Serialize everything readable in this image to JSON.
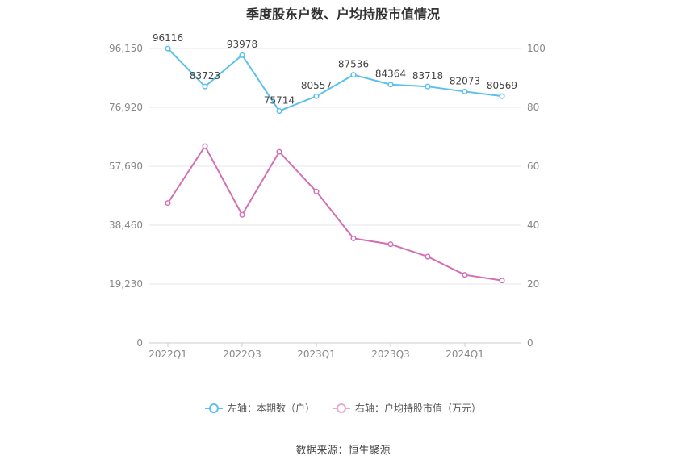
{
  "chart_data": {
    "type": "line",
    "title": "季度股东户数、户均持股市值情况",
    "categories": [
      "2022Q1",
      "2022Q2",
      "2022Q3",
      "2022Q4",
      "2023Q1",
      "2023Q2",
      "2023Q3",
      "2023Q4",
      "2024Q1",
      "2024Q2"
    ],
    "x_tick_labels": [
      "2022Q1",
      "2022Q3",
      "2023Q1",
      "2023Q3",
      "2024Q1"
    ],
    "y_left": {
      "ticks": [
        "0",
        "19,230",
        "38,460",
        "57,690",
        "76,920",
        "96,150"
      ],
      "ylim": [
        0,
        96150
      ]
    },
    "y_right": {
      "ticks": [
        "0",
        "20",
        "40",
        "60",
        "80",
        "100"
      ],
      "ylim": [
        0,
        100
      ]
    },
    "series": [
      {
        "name": "左轴：本期数（户）",
        "axis": "left",
        "color": "#5bc0eb",
        "values": [
          96116,
          83723,
          93978,
          75714,
          80557,
          87536,
          84364,
          83718,
          82073,
          80569
        ],
        "labels": [
          "96116",
          "83723",
          "93978",
          "75714",
          "80557",
          "87536",
          "84364",
          "83718",
          "82073",
          "80569"
        ]
      },
      {
        "name": "右轴：户均持股市值（万元）",
        "axis": "right",
        "color": "#d36fb5",
        "values": [
          47.5,
          66.8,
          43.5,
          64.9,
          51.4,
          35.5,
          33.5,
          29.3,
          23.1,
          21.2
        ]
      }
    ],
    "grid": true,
    "legend_position": "bottom"
  },
  "footer": {
    "source": "数据来源：恒生聚源"
  }
}
